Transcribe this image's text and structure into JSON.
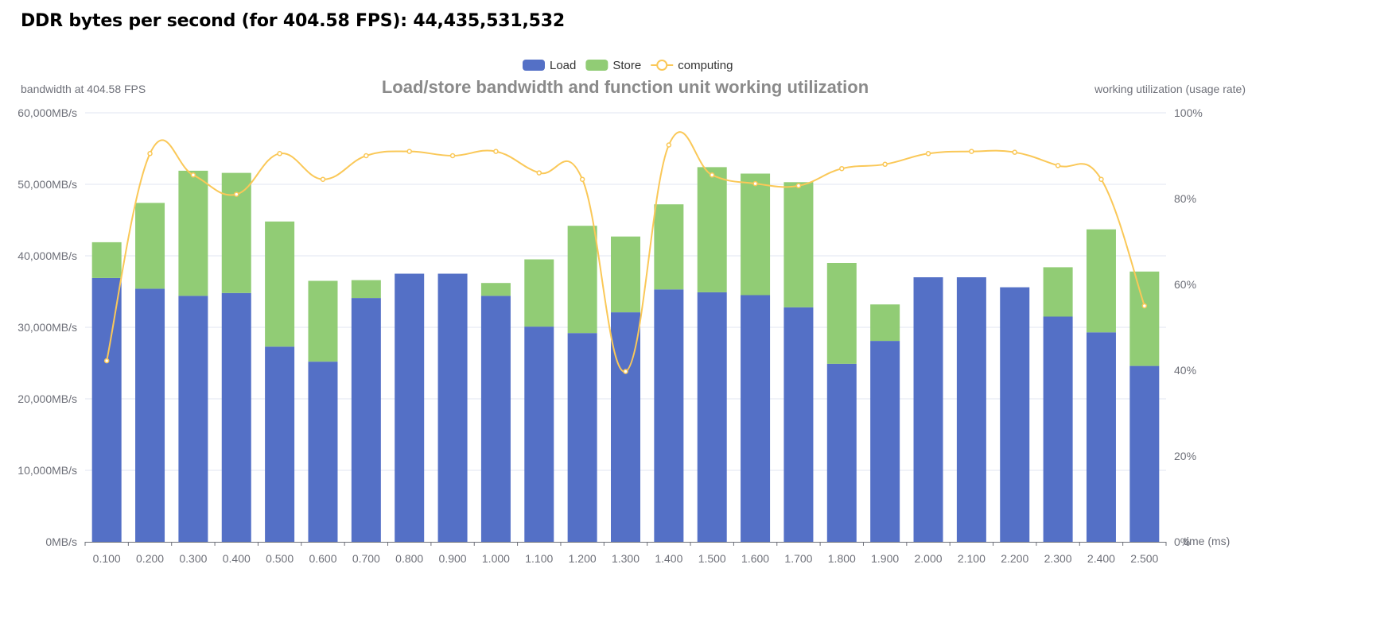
{
  "page": {
    "heading_label": "DDR bytes per second (for 404.58 FPS):",
    "heading_value": "44,435,531,532"
  },
  "chart_data": {
    "type": "bar",
    "stacked": true,
    "title": "Load/store bandwidth and function unit working utilization",
    "xlabel": "time (ms)",
    "ylabel": "bandwidth at 404.58 FPS",
    "y2label": "working utilization (usage rate)",
    "ylim": [
      0,
      60000
    ],
    "y_ticks": [
      0,
      10000,
      20000,
      30000,
      40000,
      50000,
      60000
    ],
    "y_tick_labels": [
      "0MB/s",
      "10,000MB/s",
      "20,000MB/s",
      "30,000MB/s",
      "40,000MB/s",
      "50,000MB/s",
      "60,000MB/s"
    ],
    "y2lim": [
      0,
      100
    ],
    "y2_ticks": [
      0,
      20,
      40,
      60,
      80,
      100
    ],
    "y2_tick_labels": [
      "0%",
      "20%",
      "40%",
      "60%",
      "80%",
      "100%"
    ],
    "legend_position": "top-center",
    "categories": [
      "0.100",
      "0.200",
      "0.300",
      "0.400",
      "0.500",
      "0.600",
      "0.700",
      "0.800",
      "0.900",
      "1.000",
      "1.100",
      "1.200",
      "1.300",
      "1.400",
      "1.500",
      "1.600",
      "1.700",
      "1.800",
      "1.900",
      "2.000",
      "2.100",
      "2.200",
      "2.300",
      "2.400",
      "2.500"
    ],
    "series": [
      {
        "name": "Load",
        "type": "bar",
        "axis": "left",
        "color": "#5470c6",
        "values": [
          36900,
          35400,
          34400,
          34800,
          27300,
          25200,
          34100,
          37500,
          37500,
          34400,
          30100,
          29200,
          32100,
          35300,
          34900,
          34500,
          32800,
          24900,
          28100,
          37000,
          37000,
          35600,
          31500,
          29300,
          24600
        ]
      },
      {
        "name": "Store",
        "type": "bar",
        "axis": "left",
        "color": "#91cc75",
        "values": [
          5000,
          12000,
          17500,
          16800,
          17500,
          11300,
          2500,
          0,
          0,
          1800,
          9400,
          15000,
          10600,
          11900,
          17500,
          17000,
          17500,
          14100,
          5100,
          0,
          0,
          0,
          6900,
          14400,
          13200
        ]
      },
      {
        "name": "computing",
        "type": "line",
        "axis": "right",
        "color": "#fac858",
        "smooth": true,
        "values": [
          42.2,
          90.5,
          85.5,
          81.0,
          90.5,
          84.5,
          90.0,
          91.0,
          90.0,
          91.0,
          86.0,
          84.5,
          39.7,
          92.5,
          85.5,
          83.5,
          83.0,
          87.0,
          88.0,
          90.5,
          91.0,
          90.8,
          87.7,
          84.5,
          55.0
        ]
      }
    ]
  }
}
